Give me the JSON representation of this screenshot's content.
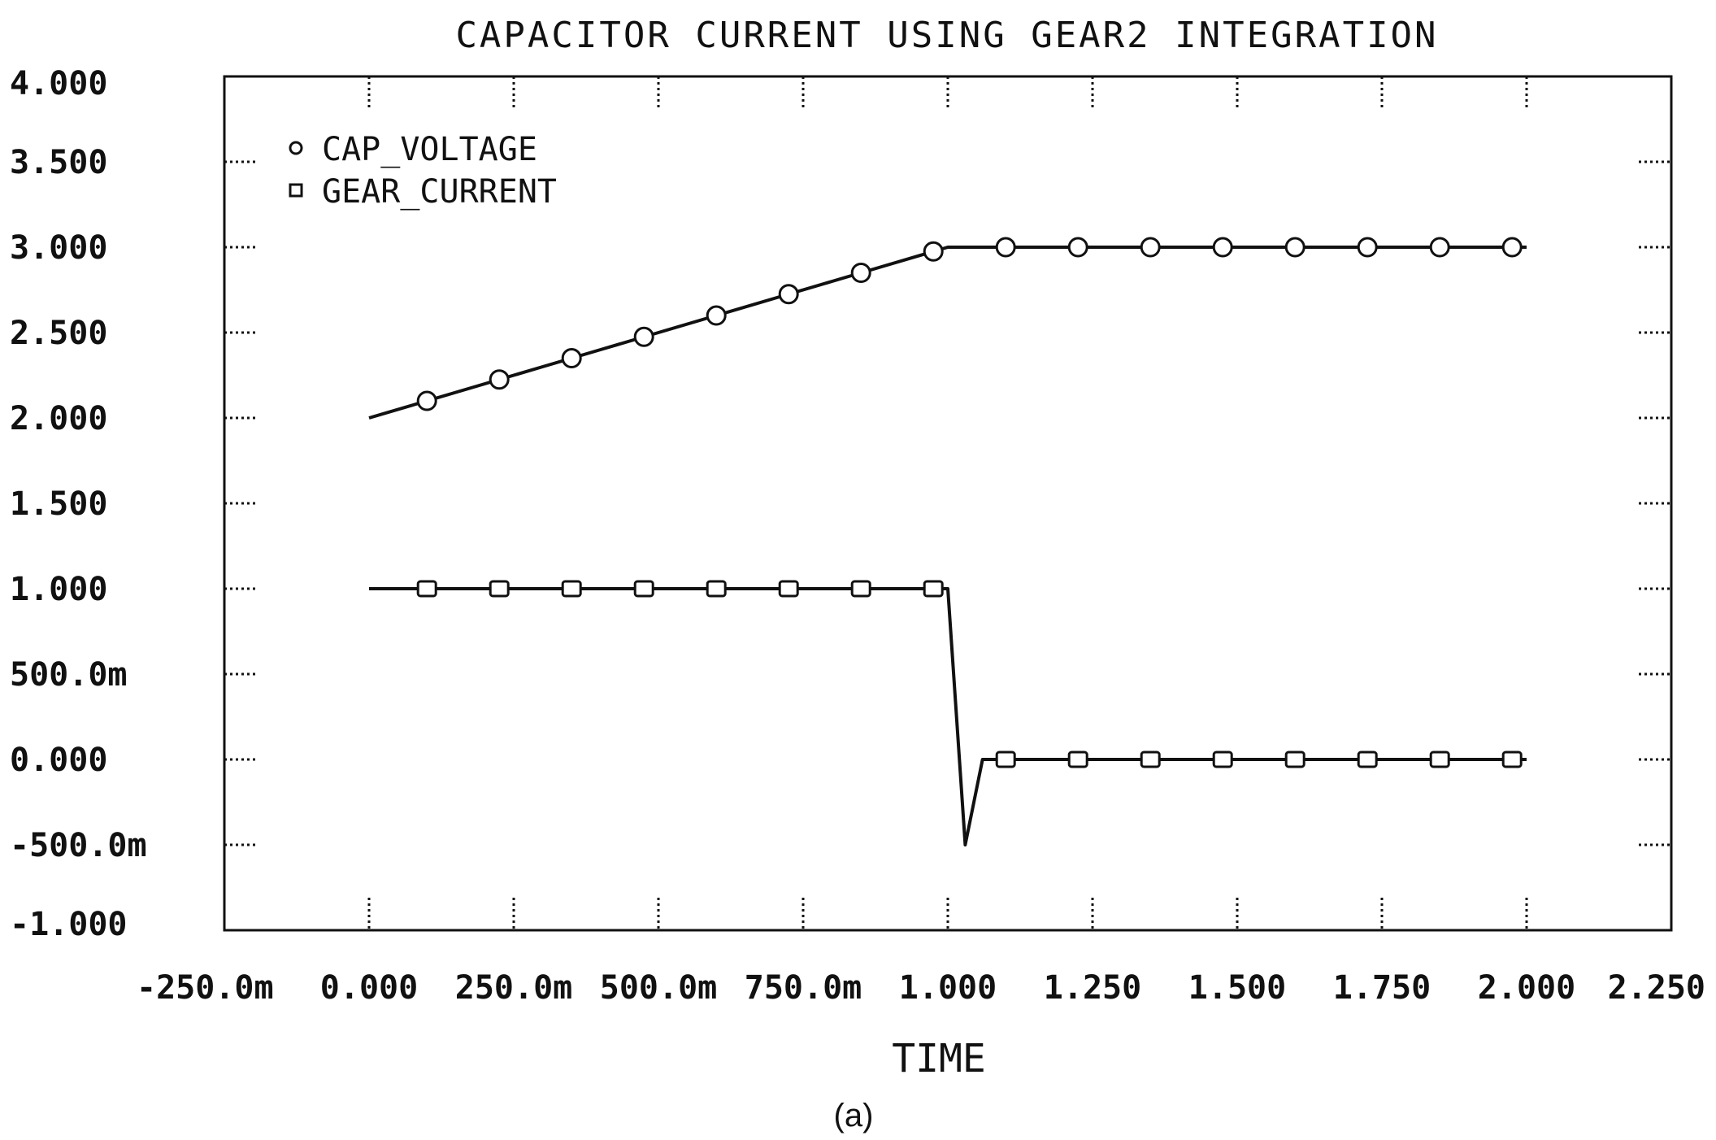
{
  "chart_data": {
    "type": "line",
    "title": "CAPACITOR CURRENT USING GEAR2 INTEGRATION",
    "xlabel": "TIME",
    "ylabel": "",
    "caption": "(a)",
    "xlim": [
      -0.25,
      2.25
    ],
    "ylim": [
      -1.0,
      4.0
    ],
    "grid": false,
    "legend_position": "top-left",
    "x_tick_values": [
      -0.25,
      0,
      0.25,
      0.5,
      0.75,
      1.0,
      1.25,
      1.5,
      1.75,
      2.0,
      2.25
    ],
    "x_tick_labels": [
      "-250.0m",
      "0.000",
      "250.0m",
      "500.0m",
      "750.0m",
      "1.000",
      "1.250",
      "1.500",
      "1.750",
      "2.000",
      "2.250"
    ],
    "y_tick_values": [
      4.0,
      3.5,
      3.0,
      2.5,
      2.0,
      1.5,
      1.0,
      0.5,
      0.0,
      -0.5,
      -1.0
    ],
    "y_tick_labels": [
      "4.000",
      "3.500",
      "3.000",
      "2.500",
      "2.000",
      "1.500",
      "1.000",
      "500.0m",
      "0.000",
      "-500.0m",
      "-1.000"
    ],
    "series": [
      {
        "name": "CAP_VOLTAGE",
        "marker": "circle",
        "x": [
          0.0,
          0.1,
          0.2,
          0.3,
          0.4,
          0.5,
          0.6,
          0.7,
          0.8,
          0.9,
          1.0,
          1.1,
          1.2,
          1.3,
          1.4,
          1.5,
          1.6,
          1.7,
          1.8,
          1.9,
          2.0
        ],
        "y": [
          2.0,
          2.1,
          2.2,
          2.3,
          2.4,
          2.5,
          2.6,
          2.7,
          2.8,
          2.9,
          3.0,
          3.0,
          3.0,
          3.0,
          3.0,
          3.0,
          3.0,
          3.0,
          3.0,
          3.0,
          3.0
        ],
        "marker_x": [
          0.1,
          0.225,
          0.35,
          0.475,
          0.6,
          0.725,
          0.85,
          0.975,
          1.1,
          1.225,
          1.35,
          1.475,
          1.6,
          1.725,
          1.85,
          1.975
        ],
        "marker_y": [
          2.1,
          2.225,
          2.35,
          2.475,
          2.6,
          2.725,
          2.85,
          2.975,
          3.0,
          3.0,
          3.0,
          3.0,
          3.0,
          3.0,
          3.0,
          3.0
        ]
      },
      {
        "name": "GEAR_CURRENT",
        "marker": "square",
        "x": [
          0.0,
          1.0,
          1.03,
          1.06,
          2.0
        ],
        "y": [
          1.0,
          1.0,
          -0.5,
          0.0,
          0.0
        ],
        "marker_x": [
          0.1,
          0.225,
          0.35,
          0.475,
          0.6,
          0.725,
          0.85,
          0.975,
          1.1,
          1.225,
          1.35,
          1.475,
          1.6,
          1.725,
          1.85,
          1.975
        ],
        "marker_y": [
          1.0,
          1.0,
          1.0,
          1.0,
          1.0,
          1.0,
          1.0,
          1.0,
          0.0,
          0.0,
          0.0,
          0.0,
          0.0,
          0.0,
          0.0,
          0.0
        ]
      }
    ]
  }
}
